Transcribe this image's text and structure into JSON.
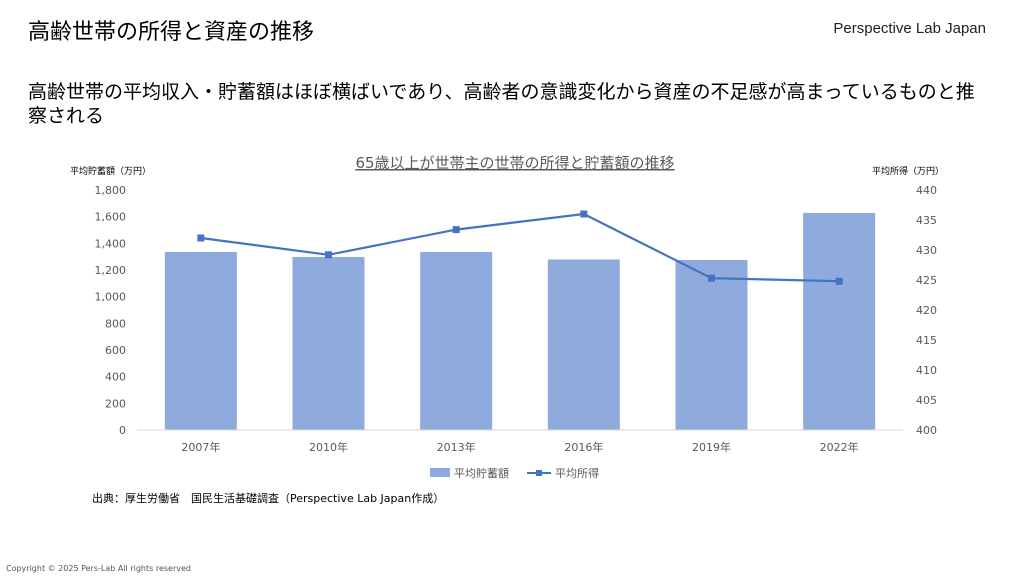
{
  "header": {
    "title": "高齢世帯の所得と資産の推移",
    "brand": "Perspective Lab Japan"
  },
  "subtitle": "高齢世帯の平均収入・貯蓄額はほぼ横ばいであり、高齢者の意識変化から資産の不足感が高まっているものと推察される",
  "source": "出典：厚生労働省　国民生活基礎調査（Perspective Lab Japan作成）",
  "copyright": "Copyright © 2025 Pers-Lab All rights reserved",
  "chart_data": {
    "type": "bar+line",
    "title": "65歳以上が世帯主の世帯の所得と貯蓄額の推移",
    "ylabel_left": "平均貯蓄額（万円）",
    "ylabel_right": "平均所得（万円）",
    "categories": [
      "2007年",
      "2010年",
      "2013年",
      "2016年",
      "2019年",
      "2022年"
    ],
    "series": [
      {
        "name": "平均貯蓄額",
        "type": "bar",
        "axis": "left",
        "color": "#8faadc",
        "values": [
          1335,
          1298,
          1335,
          1279,
          1275,
          1628
        ]
      },
      {
        "name": "平均所得",
        "type": "line",
        "axis": "right",
        "color": "#4472c4",
        "values": [
          432.0,
          429.2,
          433.4,
          436.0,
          425.3,
          424.8
        ]
      }
    ],
    "ylim_left": [
      0,
      1800
    ],
    "yticks_left": [
      "0",
      "200",
      "400",
      "600",
      "800",
      "1,000",
      "1,200",
      "1,400",
      "1,600",
      "1,800"
    ],
    "ylim_right": [
      400,
      440
    ],
    "yticks_right": [
      "400",
      "405",
      "410",
      "415",
      "420",
      "425",
      "430",
      "435",
      "440"
    ],
    "grid": false,
    "legend": "bottom"
  }
}
